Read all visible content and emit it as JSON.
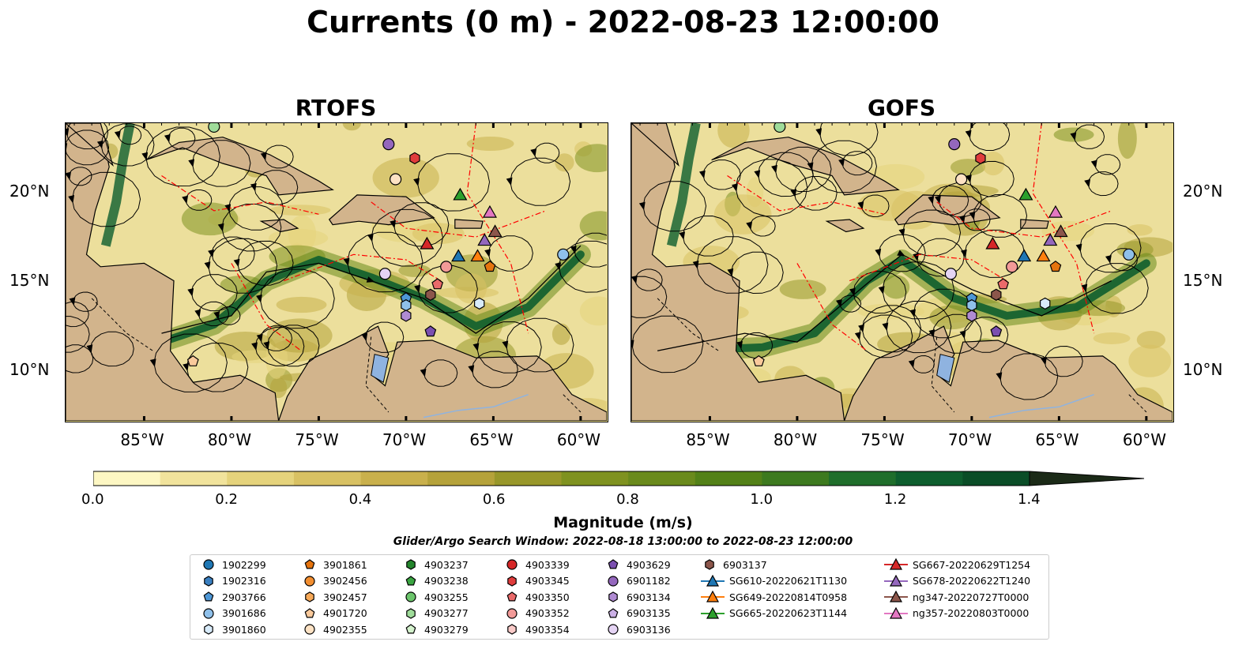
{
  "title": "Currents (0 m) - 2022-08-23 12:00:00",
  "panels": [
    {
      "title": "RTOFS"
    },
    {
      "title": "GOFS"
    }
  ],
  "axes": {
    "x_ticks": [
      "85°W",
      "80°W",
      "75°W",
      "70°W",
      "65°W",
      "60°W"
    ],
    "y_ticks": [
      "20°N",
      "15°N",
      "10°N"
    ],
    "lon_range": [
      -89.5,
      -58.5
    ],
    "lat_range": [
      7,
      24
    ]
  },
  "colorbar": {
    "label": "Magnitude (m/s)",
    "ticks": [
      "0.0",
      "0.2",
      "0.4",
      "0.6",
      "0.8",
      "1.0",
      "1.2",
      "1.4"
    ],
    "range": [
      0,
      1.5
    ],
    "colors": [
      "#fdf7c3",
      "#f1e39c",
      "#e5d37c",
      "#d8c163",
      "#c9b04c",
      "#b5a23a",
      "#98972a",
      "#7f9220",
      "#6a8a1c",
      "#538118",
      "#3d7a1f",
      "#1f6e2b",
      "#0e5e2e",
      "#0a4d27",
      "#13391f",
      "#1b2a17"
    ]
  },
  "search_window": "Glider/Argo Search Window: 2022-08-18 13:00:00 to 2022-08-23 12:00:00",
  "legend": [
    [
      {
        "label": "1902299",
        "marker": "circle",
        "color": "#1f77b4"
      },
      {
        "label": "1902316",
        "marker": "hexagon",
        "color": "#3a7fc0"
      },
      {
        "label": "2903766",
        "marker": "pentagon",
        "color": "#4e97d6"
      },
      {
        "label": "3901686",
        "marker": "circle",
        "color": "#8fc0ea"
      },
      {
        "label": "3901860",
        "marker": "hexagon",
        "color": "#d8ebfa"
      }
    ],
    [
      {
        "label": "3901861",
        "marker": "pentagon",
        "color": "#e6740e"
      },
      {
        "label": "3902456",
        "marker": "circle",
        "color": "#f28e30"
      },
      {
        "label": "3902457",
        "marker": "hexagon",
        "color": "#f7a958"
      },
      {
        "label": "4901720",
        "marker": "pentagon",
        "color": "#f9c99b"
      },
      {
        "label": "4902355",
        "marker": "circle",
        "color": "#fde2c4"
      }
    ],
    [
      {
        "label": "4903237",
        "marker": "hexagon",
        "color": "#23852c"
      },
      {
        "label": "4903238",
        "marker": "pentagon",
        "color": "#3aa542"
      },
      {
        "label": "4903255",
        "marker": "circle",
        "color": "#6cc56c"
      },
      {
        "label": "4903277",
        "marker": "hexagon",
        "color": "#9fdc9a"
      },
      {
        "label": "4903279",
        "marker": "pentagon",
        "color": "#d4f2cd"
      }
    ],
    [
      {
        "label": "4903339",
        "marker": "circle",
        "color": "#d62728"
      },
      {
        "label": "4903345",
        "marker": "hexagon",
        "color": "#e03c3c"
      },
      {
        "label": "4903350",
        "marker": "pentagon",
        "color": "#ea6a6a"
      },
      {
        "label": "4903352",
        "marker": "circle",
        "color": "#f29a98"
      },
      {
        "label": "4903354",
        "marker": "hexagon",
        "color": "#f9cac8"
      }
    ],
    [
      {
        "label": "4903629",
        "marker": "pentagon",
        "color": "#7b4fb0"
      },
      {
        "label": "6901182",
        "marker": "circle",
        "color": "#9467bd"
      },
      {
        "label": "6903134",
        "marker": "hexagon",
        "color": "#b08bd3"
      },
      {
        "label": "6903135",
        "marker": "pentagon",
        "color": "#cbb0e5"
      },
      {
        "label": "6903136",
        "marker": "circle",
        "color": "#e5d4f4"
      }
    ],
    [
      {
        "label": "6903137",
        "marker": "hexagon",
        "color": "#8c564b"
      },
      {
        "label": "SG610-20220621T1130",
        "marker": "triangle-line",
        "color": "#1f77b4"
      },
      {
        "label": "SG649-20220814T0958",
        "marker": "triangle-line",
        "color": "#ff7f0e"
      },
      {
        "label": "SG665-20220623T1144",
        "marker": "triangle-line",
        "color": "#2ca02c"
      }
    ],
    [
      {
        "label": "SG667-20220629T1254",
        "marker": "triangle-line",
        "color": "#d62728"
      },
      {
        "label": "SG678-20220622T1240",
        "marker": "triangle-line",
        "color": "#9467bd"
      },
      {
        "label": "ng347-20220727T0000",
        "marker": "triangle-line",
        "color": "#8c564b"
      },
      {
        "label": "ng357-20220803T0000",
        "marker": "triangle-line",
        "color": "#e377c2"
      }
    ]
  ],
  "colors": {
    "land": "#d2b48c",
    "ocean_low": "#e9dc8e",
    "eez_lines": "#ff0000",
    "lakes": "#8fb3e0",
    "rivers": "#8fb3e0",
    "borders": "#000000"
  }
}
